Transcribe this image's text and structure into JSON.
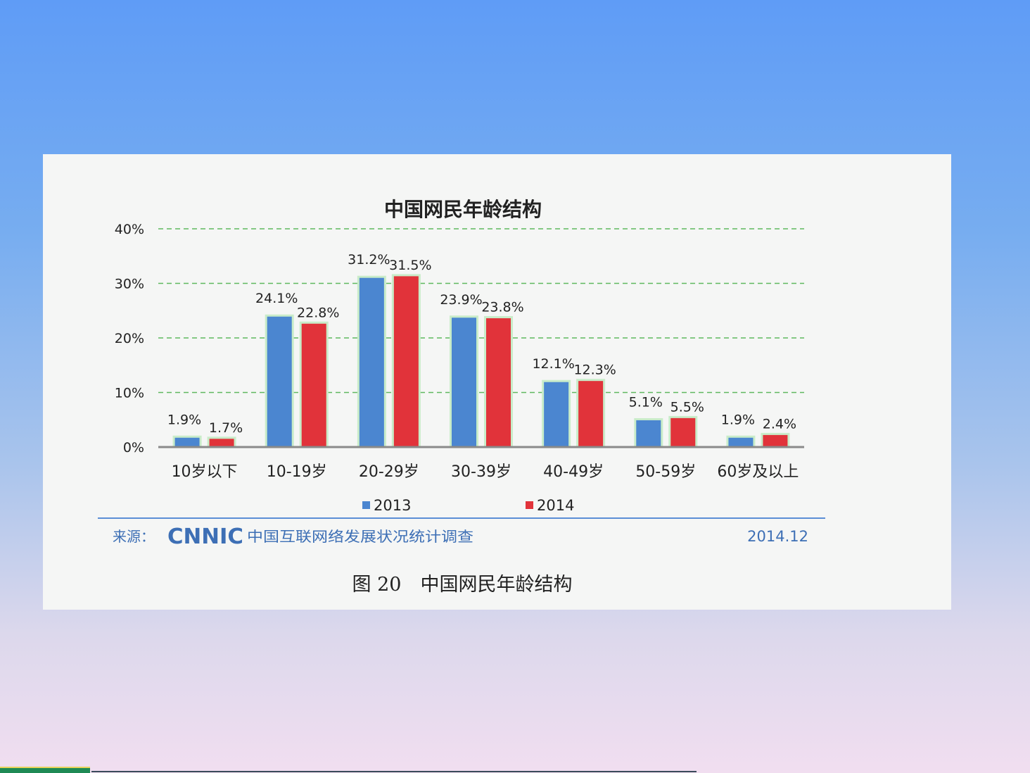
{
  "chart_data": {
    "type": "bar",
    "title": "中国网民年龄结构",
    "categories": [
      "10岁以下",
      "10-19岁",
      "20-29岁",
      "30-39岁",
      "40-49岁",
      "50-59岁",
      "60岁及以上"
    ],
    "series": [
      {
        "name": "2013",
        "values": [
          1.9,
          24.1,
          31.2,
          23.9,
          12.1,
          5.1,
          1.9
        ],
        "labels": [
          "1.9%",
          "24.1%",
          "31.2%",
          "23.9%",
          "12.1%",
          "5.1%",
          "1.9%"
        ],
        "color": "#4b86d0"
      },
      {
        "name": "2014",
        "values": [
          1.7,
          22.8,
          31.5,
          23.8,
          12.3,
          5.5,
          2.4
        ],
        "labels": [
          "1.7%",
          "22.8%",
          "31.5%",
          "23.8%",
          "12.3%",
          "5.5%",
          "2.4%"
        ],
        "color": "#e1333a"
      }
    ],
    "y_ticks": [
      "0%",
      "10%",
      "20%",
      "30%",
      "40%"
    ],
    "y_tick_values": [
      0,
      10,
      20,
      30,
      40
    ],
    "ylim": [
      0,
      40
    ],
    "grid": true,
    "grid_color": "#5fb85f",
    "legend_position": "bottom"
  },
  "source": {
    "label": "来源：",
    "logo_text": "CNNIC",
    "org": "中国互联网络发展状况统计调查",
    "date": "2014.12",
    "color": "#3d6fb5"
  },
  "caption": "图 20　中国网民年龄结构"
}
